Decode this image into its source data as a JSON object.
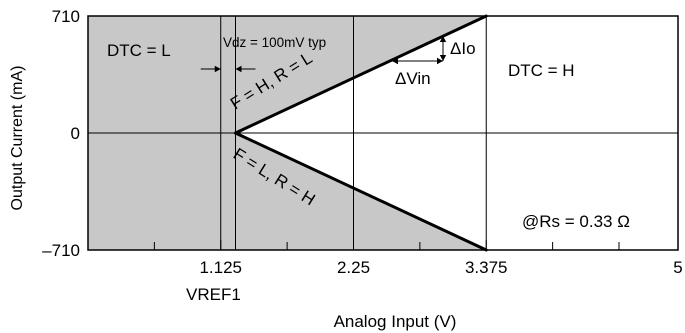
{
  "chart_data": {
    "type": "line",
    "xlabel": "Analog Input  (V)",
    "ylabel": "Output Current  (mA)",
    "xlim": [
      0,
      5
    ],
    "ylim": [
      -710,
      710
    ],
    "x_ticks": [
      {
        "value": 1.125,
        "label": "1.125"
      },
      {
        "value": 2.25,
        "label": "2.25"
      },
      {
        "value": 3.375,
        "label": "3.375"
      },
      {
        "value": 5,
        "label": "5"
      }
    ],
    "x_minor_ticks": [
      0.5625,
      1.6875,
      2.8125,
      3.9375,
      4.5
    ],
    "y_ticks": [
      {
        "value": 710,
        "label": "710"
      },
      {
        "value": 0,
        "label": "0"
      },
      {
        "value": -710,
        "label": "–710"
      }
    ],
    "vref_label": "VREF1",
    "shaded_color": "#c8c8c8",
    "line_color": "#000000",
    "series": [
      {
        "label": "F = H, R = L",
        "points": [
          [
            1.25,
            0
          ],
          [
            3.375,
            710
          ]
        ]
      },
      {
        "label": "F = L, R = H",
        "points": [
          [
            1.25,
            0
          ],
          [
            3.375,
            -710
          ]
        ]
      }
    ],
    "regions": [
      {
        "label": "DTC = L",
        "shaded": true,
        "x_range": [
          0,
          1.125
        ]
      },
      {
        "label": "DTC = H",
        "shaded": false,
        "x_range": [
          3.375,
          5
        ]
      }
    ],
    "annotations": {
      "vdz": "Vdz = 100mV typ",
      "delta_io": "ΔIo",
      "delta_vin": "ΔVin",
      "rs": "@Rs = 0.33 Ω"
    }
  }
}
